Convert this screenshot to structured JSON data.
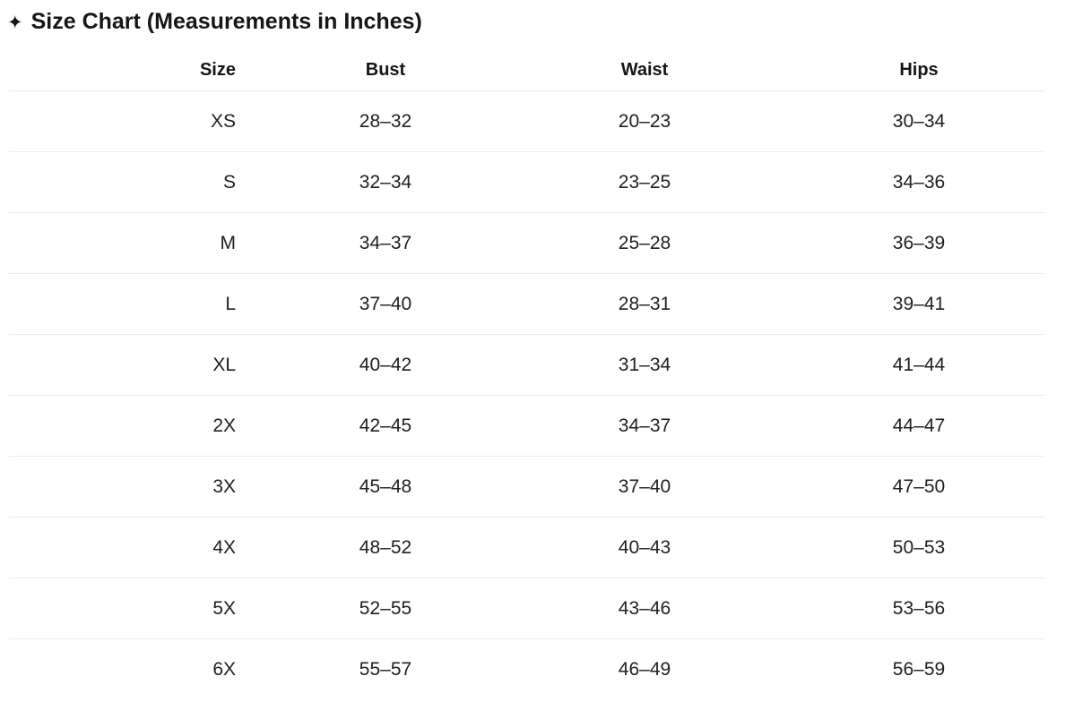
{
  "title": {
    "icon": "✦",
    "text": "Size Chart (Measurements in Inches)"
  },
  "colors": {
    "text": "#202020",
    "divider": "#ececec",
    "background": "#ffffff"
  },
  "table": {
    "columns": [
      "Size",
      "Bust",
      "Waist",
      "Hips"
    ],
    "rows": [
      {
        "size": "XS",
        "bust": "28–32",
        "waist": "20–23",
        "hips": "30–34"
      },
      {
        "size": "S",
        "bust": "32–34",
        "waist": "23–25",
        "hips": "34–36"
      },
      {
        "size": "M",
        "bust": "34–37",
        "waist": "25–28",
        "hips": "36–39"
      },
      {
        "size": "L",
        "bust": "37–40",
        "waist": "28–31",
        "hips": "39–41"
      },
      {
        "size": "XL",
        "bust": "40–42",
        "waist": "31–34",
        "hips": "41–44"
      },
      {
        "size": "2X",
        "bust": "42–45",
        "waist": "34–37",
        "hips": "44–47"
      },
      {
        "size": "3X",
        "bust": "45–48",
        "waist": "37–40",
        "hips": "47–50"
      },
      {
        "size": "4X",
        "bust": "48–52",
        "waist": "40–43",
        "hips": "50–53"
      },
      {
        "size": "5X",
        "bust": "52–55",
        "waist": "43–46",
        "hips": "53–56"
      },
      {
        "size": "6X",
        "bust": "55–57",
        "waist": "46–49",
        "hips": "56–59"
      }
    ]
  }
}
